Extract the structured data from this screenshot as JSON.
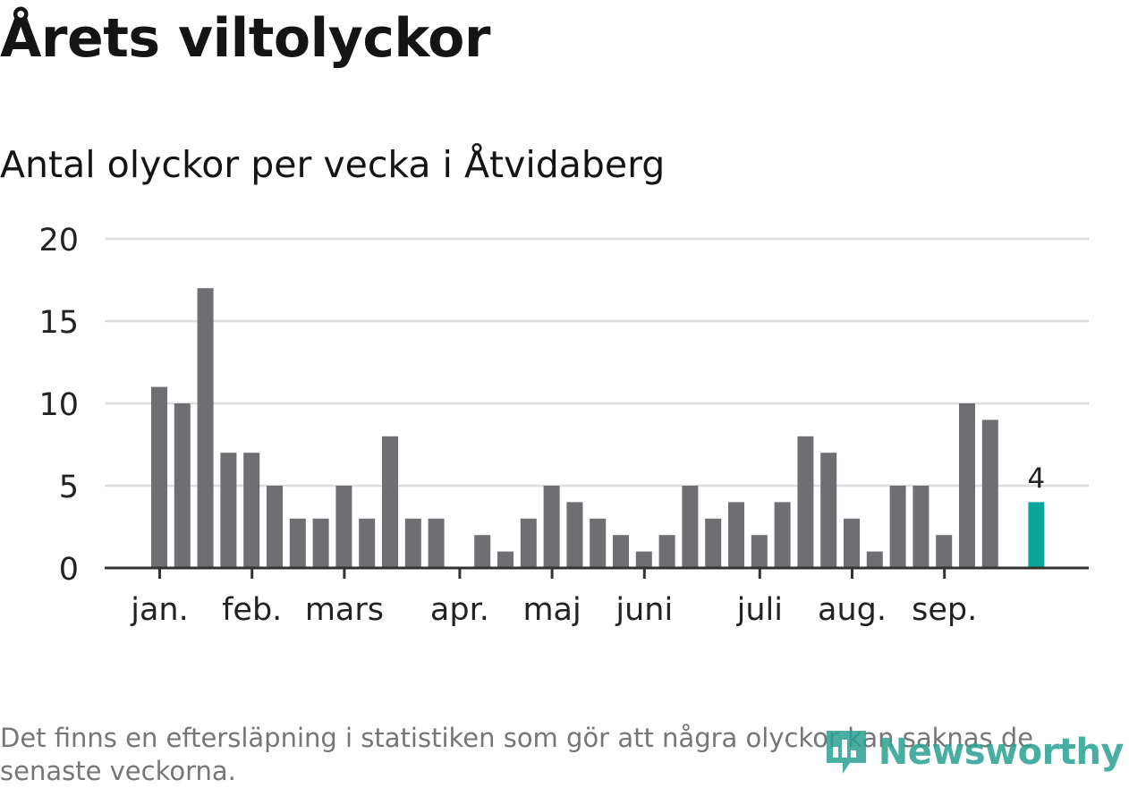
{
  "header": {
    "title": "Årets viltolyckor",
    "subtitle": "Antal olyckor per vecka i Åtvidaberg"
  },
  "footnote": "Det finns en eftersläpning i statistiken som gör att några olyckor kan saknas de senaste veckorna.",
  "brand": {
    "name": "Newsworthy"
  },
  "colors": {
    "bar": "#6f6e73",
    "highlight": "#0aa59a",
    "grid": "#dddddd",
    "axis": "#333333"
  },
  "chart_data": {
    "type": "bar",
    "title": "Antal olyckor per vecka i Åtvidaberg",
    "xlabel": "",
    "ylabel": "",
    "ylim": [
      0,
      20
    ],
    "yticks": [
      0,
      5,
      10,
      15,
      20
    ],
    "values": [
      11,
      10,
      17,
      7,
      7,
      5,
      3,
      3,
      5,
      3,
      8,
      3,
      3,
      0,
      2,
      1,
      3,
      5,
      4,
      3,
      2,
      1,
      2,
      5,
      3,
      4,
      2,
      4,
      8,
      7,
      3,
      1,
      5,
      5,
      2,
      10,
      9,
      null,
      4
    ],
    "highlight_index": 38,
    "highlight_label": "4",
    "month_labels": [
      {
        "label": "jan.",
        "week_index": 0.5
      },
      {
        "label": "feb.",
        "week_index": 4.5
      },
      {
        "label": "mars",
        "week_index": 8.5
      },
      {
        "label": "apr.",
        "week_index": 13.5
      },
      {
        "label": "maj",
        "week_index": 17.5
      },
      {
        "label": "juni",
        "week_index": 21.5
      },
      {
        "label": "juli",
        "week_index": 26.5
      },
      {
        "label": "aug.",
        "week_index": 30.5
      },
      {
        "label": "sep.",
        "week_index": 34.5
      }
    ],
    "grid": true,
    "legend": "none"
  }
}
